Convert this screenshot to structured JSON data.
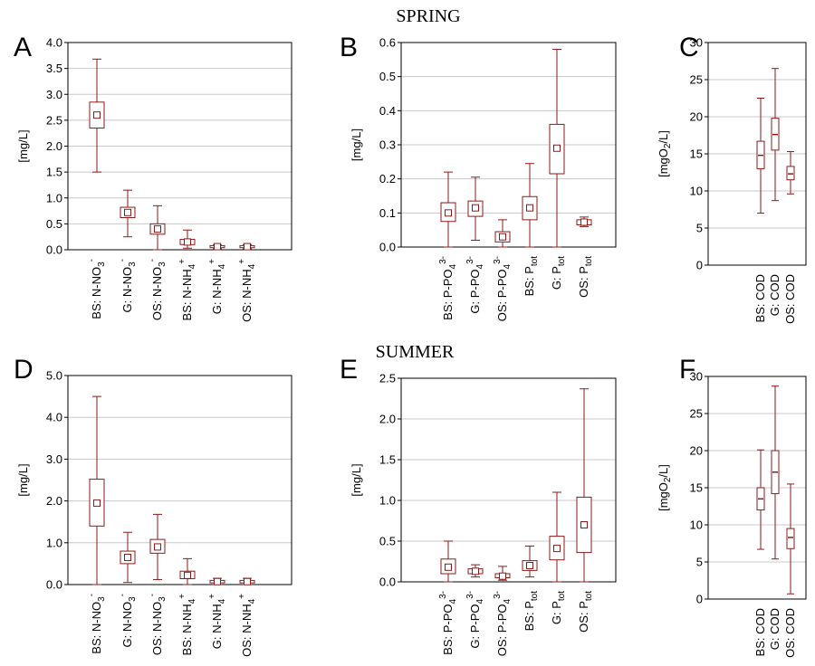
{
  "titles": {
    "spring": "SPRING",
    "summer": "SUMMER"
  },
  "colors": {
    "box": "#8b1a1a",
    "axis": "#000000",
    "grid": "#c8c8c8"
  },
  "chart_data": [
    {
      "panel": "A",
      "type": "box",
      "season": "SPRING",
      "ylabel": "[mg/L]",
      "ylim": [
        0,
        4
      ],
      "yticks": [
        0,
        0.5,
        1.0,
        1.5,
        2.0,
        2.5,
        3.0,
        3.5,
        4.0
      ],
      "tick_decimals": 1,
      "categories": [
        "BS: N-NO3-",
        "G: N-NO3-",
        "OS: N-NO3-",
        "BS: N-NH4+",
        "G: N-NH4+",
        "OS: N-NH4+"
      ],
      "boxes": [
        {
          "category": "BS: N-NO3-",
          "min": 1.5,
          "q1": 2.35,
          "median": 2.6,
          "q3": 2.85,
          "max": 3.68
        },
        {
          "category": "G: N-NO3-",
          "min": 0.25,
          "q1": 0.62,
          "median": 0.72,
          "q3": 0.82,
          "max": 1.15
        },
        {
          "category": "OS: N-NO3-",
          "min": 0.0,
          "q1": 0.3,
          "median": 0.4,
          "q3": 0.5,
          "max": 0.85
        },
        {
          "category": "BS: N-NH4+",
          "min": 0.03,
          "q1": 0.1,
          "median": 0.15,
          "q3": 0.2,
          "max": 0.38
        },
        {
          "category": "G: N-NH4+",
          "min": 0.02,
          "q1": 0.04,
          "median": 0.06,
          "q3": 0.08,
          "max": 0.1
        },
        {
          "category": "OS: N-NH4+",
          "min": 0.02,
          "q1": 0.04,
          "median": 0.06,
          "q3": 0.08,
          "max": 0.1
        }
      ]
    },
    {
      "panel": "B",
      "type": "box",
      "season": "SPRING",
      "ylabel": "[mg/L]",
      "ylim": [
        0,
        0.6
      ],
      "yticks": [
        0,
        0.1,
        0.2,
        0.3,
        0.4,
        0.5,
        0.6
      ],
      "tick_decimals": 1,
      "categories": [
        "BS: P-PO43-",
        "G: P-PO43-",
        "OS: P-PO43-",
        "BS: Ptot",
        "G: Ptot",
        "OS: Ptot"
      ],
      "boxes": [
        {
          "category": "BS: P-PO43-",
          "min": 0.0,
          "q1": 0.075,
          "median": 0.1,
          "q3": 0.13,
          "max": 0.22
        },
        {
          "category": "G: P-PO43-",
          "min": 0.02,
          "q1": 0.09,
          "median": 0.115,
          "q3": 0.135,
          "max": 0.205
        },
        {
          "category": "OS: P-PO43-",
          "min": 0.0,
          "q1": 0.015,
          "median": 0.03,
          "q3": 0.045,
          "max": 0.08
        },
        {
          "category": "BS: Ptot",
          "min": 0.0,
          "q1": 0.08,
          "median": 0.115,
          "q3": 0.148,
          "max": 0.245
        },
        {
          "category": "G: Ptot",
          "min": 0.0,
          "q1": 0.215,
          "median": 0.29,
          "q3": 0.36,
          "max": 0.58
        },
        {
          "category": "OS: Ptot",
          "min": 0.06,
          "q1": 0.065,
          "median": 0.073,
          "q3": 0.08,
          "max": 0.088
        }
      ]
    },
    {
      "panel": "C",
      "type": "box",
      "season": "SPRING",
      "ylabel": "[mgO2/L]",
      "ylim": [
        0,
        30
      ],
      "yticks": [
        0,
        5,
        10,
        15,
        20,
        25,
        30
      ],
      "tick_decimals": 0,
      "categories": [
        "BS: COD",
        "G: COD",
        "OS: COD"
      ],
      "boxes": [
        {
          "category": "BS: COD",
          "min": 7.0,
          "q1": 13.0,
          "median": 14.8,
          "q3": 16.7,
          "max": 22.5
        },
        {
          "category": "G: COD",
          "min": 8.7,
          "q1": 15.5,
          "median": 17.6,
          "q3": 19.8,
          "max": 26.5
        },
        {
          "category": "OS: COD",
          "min": 9.6,
          "q1": 11.5,
          "median": 12.3,
          "q3": 13.3,
          "max": 15.3
        }
      ]
    },
    {
      "panel": "D",
      "type": "box",
      "season": "SUMMER",
      "ylabel": "[mg/L]",
      "ylim": [
        0,
        5
      ],
      "yticks": [
        0,
        1.0,
        2.0,
        3.0,
        4.0,
        5.0
      ],
      "tick_decimals": 1,
      "categories": [
        "BS: N-NO3-",
        "G: N-NO3-",
        "OS: N-NO3-",
        "BS: N-NH4+",
        "G: N-NH4+",
        "OS: N-NH4+"
      ],
      "boxes": [
        {
          "category": "BS: N-NO3-",
          "min": 0.0,
          "q1": 1.4,
          "median": 1.95,
          "q3": 2.52,
          "max": 4.5
        },
        {
          "category": "G: N-NO3-",
          "min": 0.05,
          "q1": 0.5,
          "median": 0.65,
          "q3": 0.8,
          "max": 1.25
        },
        {
          "category": "OS: N-NO3-",
          "min": 0.12,
          "q1": 0.75,
          "median": 0.9,
          "q3": 1.08,
          "max": 1.68
        },
        {
          "category": "BS: N-NH4+",
          "min": 0.0,
          "q1": 0.14,
          "median": 0.22,
          "q3": 0.32,
          "max": 0.62
        },
        {
          "category": "G: N-NH4+",
          "min": 0.0,
          "q1": 0.04,
          "median": 0.07,
          "q3": 0.1,
          "max": 0.15
        },
        {
          "category": "OS: N-NH4+",
          "min": 0.0,
          "q1": 0.04,
          "median": 0.07,
          "q3": 0.1,
          "max": 0.15
        }
      ]
    },
    {
      "panel": "E",
      "type": "box",
      "season": "SUMMER",
      "ylabel": "[mg/L]",
      "ylim": [
        0,
        2.5
      ],
      "yticks": [
        0,
        0.5,
        1.0,
        1.5,
        2.0,
        2.5
      ],
      "tick_decimals": 1,
      "categories": [
        "BS: P-PO43-",
        "G: P-PO43-",
        "OS: P-PO43-",
        "BS: Ptot",
        "G: Ptot",
        "OS: Ptot"
      ],
      "boxes": [
        {
          "category": "BS: P-PO43-",
          "min": 0.0,
          "q1": 0.1,
          "median": 0.18,
          "q3": 0.28,
          "max": 0.5
        },
        {
          "category": "G: P-PO43-",
          "min": 0.06,
          "q1": 0.1,
          "median": 0.13,
          "q3": 0.16,
          "max": 0.21
        },
        {
          "category": "OS: P-PO43-",
          "min": 0.02,
          "q1": 0.05,
          "median": 0.07,
          "q3": 0.1,
          "max": 0.19
        },
        {
          "category": "BS: Ptot",
          "min": 0.06,
          "q1": 0.14,
          "median": 0.2,
          "q3": 0.26,
          "max": 0.44
        },
        {
          "category": "G: Ptot",
          "min": 0.0,
          "q1": 0.27,
          "median": 0.41,
          "q3": 0.56,
          "max": 1.1
        },
        {
          "category": "OS: Ptot",
          "min": 0.0,
          "q1": 0.36,
          "median": 0.7,
          "q3": 1.04,
          "max": 2.37
        }
      ]
    },
    {
      "panel": "F",
      "type": "box",
      "season": "SUMMER",
      "ylabel": "[mgO2/L]",
      "ylim": [
        0,
        30
      ],
      "yticks": [
        0,
        5,
        10,
        15,
        20,
        25,
        30
      ],
      "tick_decimals": 0,
      "categories": [
        "BS: COD",
        "G: COD",
        "OS: COD"
      ],
      "boxes": [
        {
          "category": "BS: COD",
          "min": 6.7,
          "q1": 12.0,
          "median": 13.5,
          "q3": 15.0,
          "max": 20.1
        },
        {
          "category": "G: COD",
          "min": 5.4,
          "q1": 14.2,
          "median": 17.1,
          "q3": 20.0,
          "max": 28.7
        },
        {
          "category": "OS: COD",
          "min": 0.7,
          "q1": 6.8,
          "median": 8.3,
          "q3": 9.5,
          "max": 15.5
        }
      ]
    }
  ]
}
